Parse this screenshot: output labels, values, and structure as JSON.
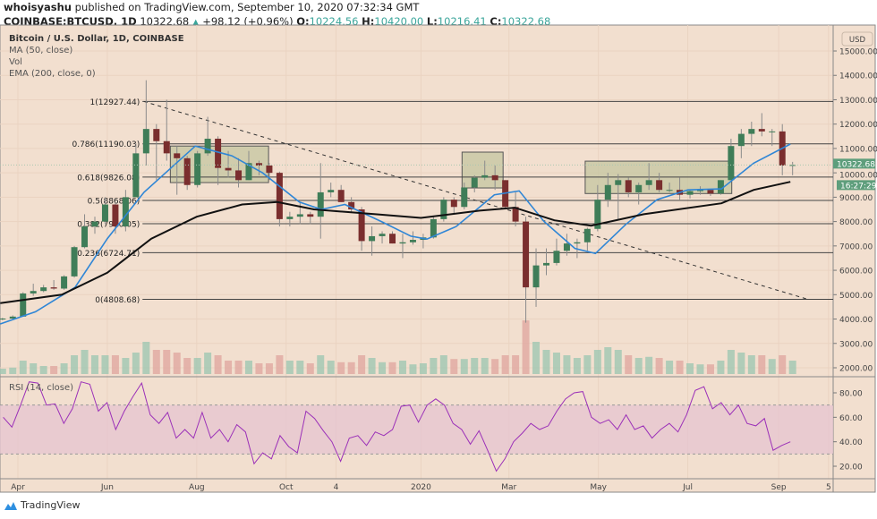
{
  "header": {
    "author": "whoisyashu",
    "published": " published on TradingView.com, September 10, 2020 07:32:34 GMT",
    "symbol": "COINBASE:BTCUSD, 1D",
    "last": "10322.68",
    "direction_icon": "triangle-up-icon",
    "change": "+98.12 (+0.96%)",
    "o_label": "O:",
    "o": "10224.56",
    "h_label": "H:",
    "h": "10420.00",
    "l_label": "L:",
    "l": "10216.41",
    "c_label": "C:",
    "c": "10322.68"
  },
  "legend": {
    "title": "Bitcoin / U.S. Dollar, 1D, COINBASE",
    "ma": "MA (50, close)",
    "vol": "Vol",
    "ema": "EMA (200, close, 0)",
    "rsi": "RSI (14, close)"
  },
  "branding": {
    "logo_text": "TradingView"
  },
  "colors": {
    "background": "#f2dfcf",
    "grid": "#ead3c1",
    "candle_up": "#3f7d58",
    "candle_down": "#7a2e2e",
    "ma50": "#2f86d6",
    "ema200": "#111111",
    "rsi_line": "#9b30b8",
    "rsi_band": "#e6c6cf",
    "box_fill": "#c4c6a0",
    "price_tag": "#5e9e7c",
    "accent_teal": "#3aa59a"
  },
  "chart_data": {
    "type": "candlestick",
    "interval_drawn": "1W",
    "currency_label": "USD",
    "price_axis": {
      "ylim": [
        1500,
        15300
      ],
      "ticks": [
        "15000.00",
        "14000.00",
        "13000.00",
        "12000.00",
        "11000.00",
        "10000.00",
        "9000.00",
        "8000.00",
        "7000.00",
        "6000.00",
        "5000.00",
        "4000.00",
        "3000.00",
        "2000.00"
      ]
    },
    "last_price_tag": "10322.68",
    "countdown": "16:27:29",
    "x_ticks": [
      {
        "label": "Apr",
        "date": "2019-04-01"
      },
      {
        "label": "Jun",
        "date": "2019-06-01"
      },
      {
        "label": "Aug",
        "date": "2019-08-01"
      },
      {
        "label": "Oct",
        "date": "2019-10-01"
      },
      {
        "label": "4",
        "date": "2019-11-04"
      },
      {
        "label": "2020",
        "date": "2020-01-01"
      },
      {
        "label": "Mar",
        "date": "2020-03-01"
      },
      {
        "label": "May",
        "date": "2020-05-01"
      },
      {
        "label": "Jul",
        "date": "2020-07-01"
      },
      {
        "label": "Sep",
        "date": "2020-09-01"
      },
      {
        "label": "5",
        "date": "2020-10-05"
      }
    ],
    "candles_start": "2019-03-18",
    "candles_ohlc": [
      [
        4000,
        4050,
        3950,
        4020
      ],
      [
        4020,
        4150,
        3950,
        4100
      ],
      [
        4100,
        5100,
        4100,
        5050
      ],
      [
        5050,
        5450,
        4950,
        5150
      ],
      [
        5150,
        5400,
        5100,
        5300
      ],
      [
        5300,
        5600,
        5200,
        5250
      ],
      [
        5250,
        5800,
        5200,
        5750
      ],
      [
        5750,
        7000,
        5700,
        6950
      ],
      [
        6950,
        8300,
        6900,
        7800
      ],
      [
        7800,
        8200,
        7500,
        8000
      ],
      [
        8000,
        9000,
        7900,
        8700
      ],
      [
        8700,
        8800,
        7500,
        7800
      ],
      [
        7800,
        9300,
        7600,
        9000
      ],
      [
        9000,
        11200,
        9000,
        10800
      ],
      [
        10800,
        13800,
        10300,
        11800
      ],
      [
        11800,
        12000,
        9700,
        11300
      ],
      [
        11300,
        13000,
        10500,
        10800
      ],
      [
        10800,
        11100,
        9100,
        10600
      ],
      [
        10600,
        10700,
        9300,
        9500
      ],
      [
        9500,
        10900,
        9400,
        10800
      ],
      [
        10800,
        12300,
        10700,
        11400
      ],
      [
        11400,
        11500,
        9500,
        10200
      ],
      [
        10200,
        10900,
        9800,
        10100
      ],
      [
        10100,
        10600,
        9400,
        9700
      ],
      [
        9700,
        10900,
        9700,
        10400
      ],
      [
        10400,
        10500,
        9900,
        10300
      ],
      [
        10300,
        10400,
        9700,
        10000
      ],
      [
        10000,
        10050,
        7800,
        8100
      ],
      [
        8100,
        8400,
        7800,
        8200
      ],
      [
        8200,
        8800,
        7900,
        8300
      ],
      [
        8300,
        8400,
        7900,
        8200
      ],
      [
        8200,
        10400,
        7300,
        9200
      ],
      [
        9200,
        9600,
        9000,
        9300
      ],
      [
        9300,
        9500,
        8800,
        8800
      ],
      [
        8800,
        9000,
        8400,
        8500
      ],
      [
        8500,
        8600,
        6800,
        7200
      ],
      [
        7200,
        7800,
        6600,
        7400
      ],
      [
        7400,
        7600,
        7100,
        7500
      ],
      [
        7500,
        7600,
        7100,
        7100
      ],
      [
        7100,
        7500,
        6500,
        7150
      ],
      [
        7150,
        7600,
        7050,
        7250
      ],
      [
        7250,
        7500,
        6900,
        7350
      ],
      [
        7350,
        8200,
        7300,
        8100
      ],
      [
        8100,
        9000,
        8000,
        8900
      ],
      [
        8900,
        9000,
        8300,
        8600
      ],
      [
        8600,
        9600,
        8500,
        9400
      ],
      [
        9400,
        9900,
        9200,
        9800
      ],
      [
        9800,
        10500,
        9700,
        9900
      ],
      [
        9900,
        10300,
        9300,
        9700
      ],
      [
        9700,
        9700,
        8500,
        8600
      ],
      [
        8600,
        9200,
        7800,
        8000
      ],
      [
        8000,
        8200,
        3850,
        5300
      ],
      [
        5300,
        6900,
        4500,
        6200
      ],
      [
        6200,
        6900,
        5800,
        6300
      ],
      [
        6300,
        7300,
        6200,
        6800
      ],
      [
        6800,
        7500,
        6600,
        7100
      ],
      [
        7100,
        7300,
        6500,
        7150
      ],
      [
        7150,
        7750,
        6800,
        7700
      ],
      [
        7700,
        9500,
        7600,
        8900
      ],
      [
        8900,
        10000,
        8600,
        9500
      ],
      [
        9500,
        9950,
        8100,
        9700
      ],
      [
        9700,
        9800,
        9000,
        9200
      ],
      [
        9200,
        9600,
        8700,
        9500
      ],
      [
        9500,
        10400,
        9300,
        9700
      ],
      [
        9700,
        10000,
        9200,
        9300
      ],
      [
        9300,
        9600,
        9200,
        9300
      ],
      [
        9300,
        9800,
        8900,
        9100
      ],
      [
        9100,
        9300,
        8950,
        9250
      ],
      [
        9250,
        9450,
        9100,
        9300
      ],
      [
        9300,
        9300,
        9050,
        9150
      ],
      [
        9150,
        9700,
        9100,
        9700
      ],
      [
        9700,
        11400,
        9700,
        11100
      ],
      [
        11100,
        11800,
        10600,
        11600
      ],
      [
        11600,
        12100,
        11100,
        11800
      ],
      [
        11800,
        12450,
        11500,
        11700
      ],
      [
        11700,
        11800,
        11100,
        11700
      ],
      [
        11700,
        12000,
        9900,
        10300
      ],
      [
        10300,
        10450,
        9900,
        10322.68
      ]
    ],
    "volume_relative": [
      10,
      12,
      25,
      20,
      15,
      15,
      20,
      35,
      45,
      35,
      35,
      35,
      30,
      40,
      60,
      45,
      45,
      40,
      30,
      30,
      40,
      35,
      25,
      25,
      25,
      20,
      20,
      35,
      25,
      25,
      20,
      35,
      25,
      22,
      22,
      35,
      30,
      22,
      22,
      25,
      18,
      20,
      30,
      35,
      28,
      28,
      30,
      30,
      28,
      35,
      35,
      100,
      60,
      45,
      40,
      35,
      30,
      35,
      45,
      50,
      45,
      35,
      30,
      32,
      30,
      25,
      25,
      20,
      18,
      18,
      25,
      45,
      40,
      35,
      35,
      28,
      35,
      25
    ],
    "ma50": [
      [
        "2019-03-20",
        3800
      ],
      [
        "2019-04-13",
        4300
      ],
      [
        "2019-05-10",
        5300
      ],
      [
        "2019-06-01",
        7300
      ],
      [
        "2019-06-26",
        9200
      ],
      [
        "2019-07-31",
        11100
      ],
      [
        "2019-08-25",
        10700
      ],
      [
        "2019-09-15",
        10000
      ],
      [
        "2019-10-10",
        8800
      ],
      [
        "2019-10-25",
        8500
      ],
      [
        "2019-11-10",
        8700
      ],
      [
        "2019-12-05",
        8000
      ],
      [
        "2019-12-25",
        7400
      ],
      [
        "2020-01-05",
        7280
      ],
      [
        "2020-01-25",
        7800
      ],
      [
        "2020-02-20",
        9100
      ],
      [
        "2020-03-08",
        9260
      ],
      [
        "2020-03-25",
        8000
      ],
      [
        "2020-04-15",
        6900
      ],
      [
        "2020-04-29",
        6690
      ],
      [
        "2020-05-20",
        7900
      ],
      [
        "2020-06-10",
        8900
      ],
      [
        "2020-07-01",
        9300
      ],
      [
        "2020-07-24",
        9340
      ],
      [
        "2020-08-15",
        10400
      ],
      [
        "2020-09-09",
        11180
      ]
    ],
    "ema200": [
      [
        "2019-03-20",
        4650
      ],
      [
        "2019-05-01",
        5000
      ],
      [
        "2019-06-01",
        5900
      ],
      [
        "2019-07-01",
        7300
      ],
      [
        "2019-08-01",
        8200
      ],
      [
        "2019-09-01",
        8700
      ],
      [
        "2019-09-25",
        8800
      ],
      [
        "2019-10-20",
        8500
      ],
      [
        "2019-12-01",
        8300
      ],
      [
        "2020-01-01",
        8150
      ],
      [
        "2020-02-10",
        8450
      ],
      [
        "2020-03-05",
        8570
      ],
      [
        "2020-04-01",
        8050
      ],
      [
        "2020-04-26",
        7830
      ],
      [
        "2020-06-01",
        8300
      ],
      [
        "2020-07-24",
        8750
      ],
      [
        "2020-08-15",
        9300
      ],
      [
        "2020-09-09",
        9630
      ]
    ],
    "fib_levels": [
      {
        "label": "1(12927.44)",
        "price": 12927.44
      },
      {
        "label": "0.786(11190.03)",
        "price": 11190.03
      },
      {
        "label": "0.618(9826.08)",
        "price": 9826.08
      },
      {
        "label": "0.5(8868.06)",
        "price": 8868.06
      },
      {
        "label": "0.382(7910.05)",
        "price": 7910.05
      },
      {
        "label": "0.236(6724.71)",
        "price": 6724.71
      },
      {
        "label": "0(4808.68)",
        "price": 4808.68
      }
    ],
    "fib_start": "2019-06-25",
    "trendline": {
      "from": [
        "2019-06-26",
        12927.44
      ],
      "to": [
        "2020-09-21",
        4808.68
      ],
      "style": "dashed"
    },
    "boxes": [
      {
        "from": "2019-07-14",
        "to": "2019-09-19",
        "top": 11100,
        "bottom": 9600
      },
      {
        "from": "2020-01-29",
        "to": "2020-02-26",
        "top": 10850,
        "bottom": 9380
      },
      {
        "from": "2020-04-22",
        "to": "2020-07-31",
        "top": 10480,
        "bottom": 9150
      }
    ],
    "rsi": {
      "ylim": [
        10,
        92
      ],
      "overbought": 70,
      "oversold": 30,
      "ticks": [
        "80.00",
        "60.00",
        "40.00",
        "20.00"
      ],
      "start": "2019-03-22",
      "end": "2020-09-09",
      "values": [
        60,
        52,
        70,
        89,
        88,
        70,
        71,
        55,
        67,
        89,
        87,
        65,
        72,
        50,
        65,
        77,
        88,
        62,
        55,
        64,
        43,
        50,
        43,
        64,
        43,
        50,
        40,
        54,
        48,
        22,
        31,
        26,
        45,
        36,
        31,
        65,
        59,
        49,
        40,
        24,
        43,
        45,
        37,
        48,
        45,
        50,
        69,
        70,
        56,
        70,
        75,
        70,
        55,
        50,
        38,
        49,
        33,
        16,
        26,
        40,
        47,
        55,
        50,
        53,
        65,
        75,
        80,
        81,
        60,
        55,
        58,
        50,
        62,
        50,
        53,
        43,
        50,
        55,
        48,
        62,
        82,
        85,
        67,
        72,
        62,
        70,
        55,
        53,
        59,
        33,
        37,
        40
      ]
    }
  }
}
